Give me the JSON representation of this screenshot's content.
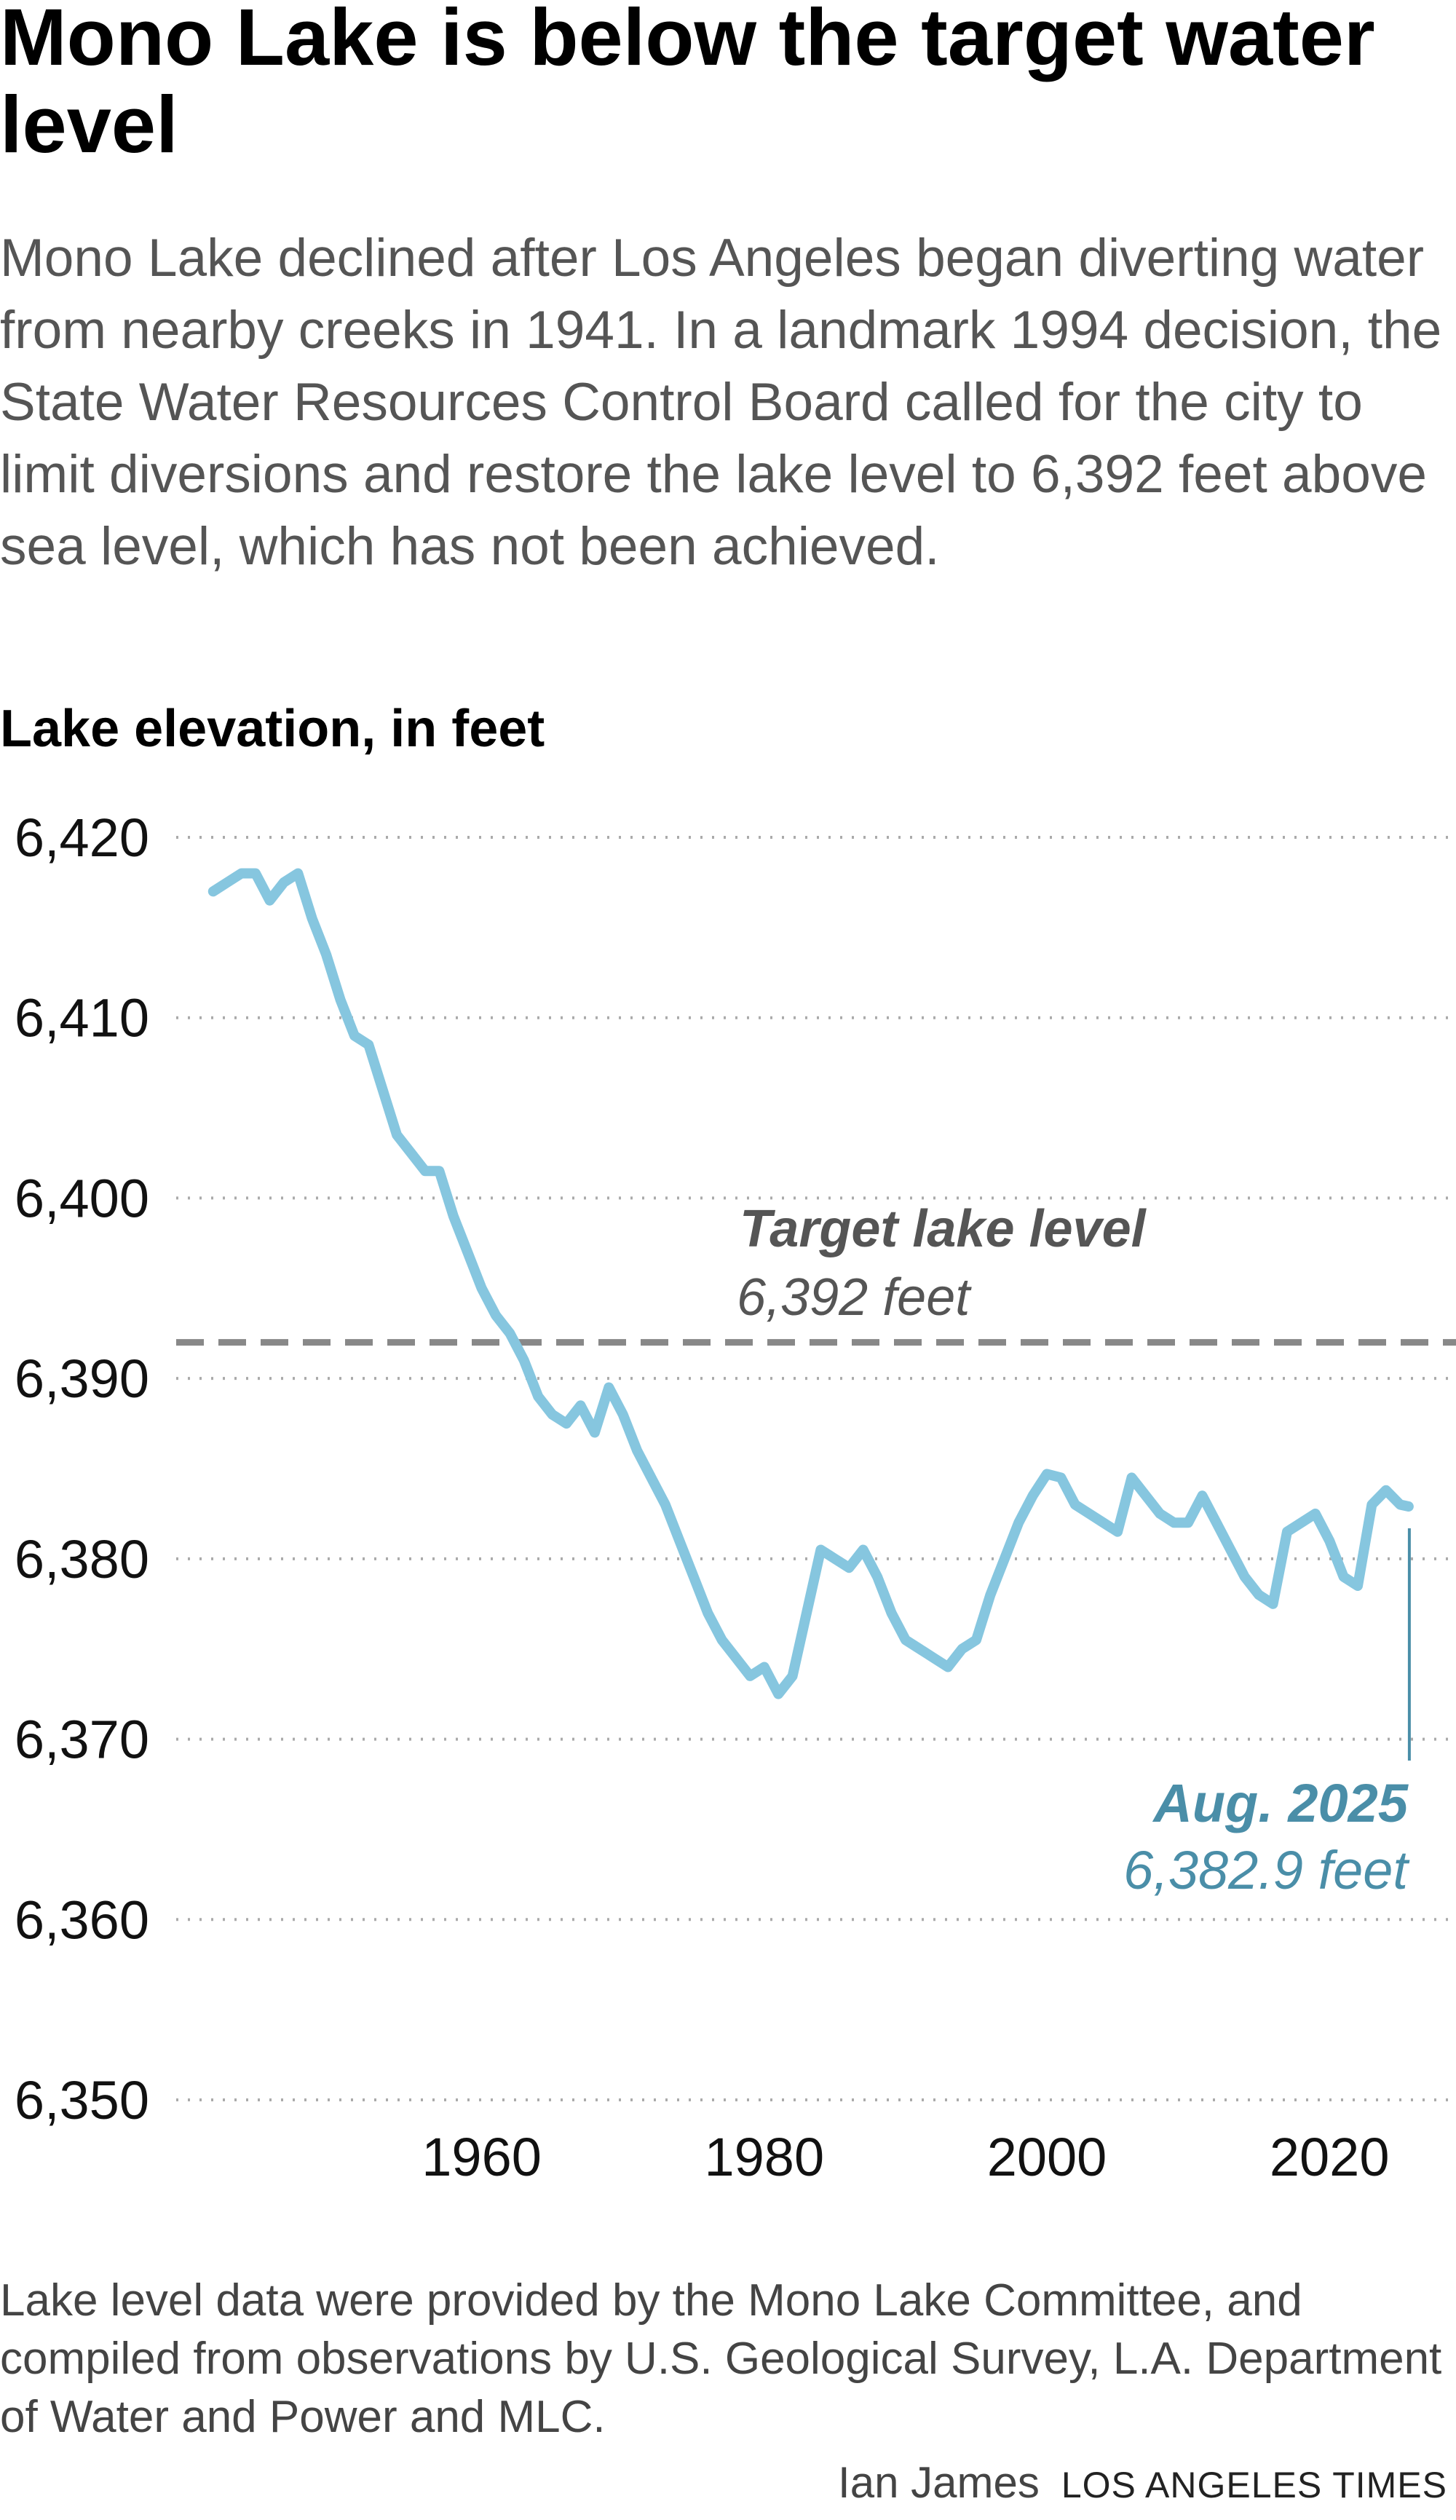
{
  "header": {
    "title": "Mono Lake is below the target water level",
    "subtitle": "Mono Lake declined after Los Angeles began diverting water from nearby creeks in 1941. In a landmark 1994 decision, the State Water Resources Control Board called for the city to limit diversions and restore the lake level to 6,392 feet above sea level, which has not been achieved."
  },
  "chart_data": {
    "type": "line",
    "ylabel": "Lake elevation, in feet",
    "ylim": [
      6350,
      6420
    ],
    "xlim": [
      1941,
      2025.6
    ],
    "y_ticks": [
      "6,420",
      "6,410",
      "6,400",
      "6,390",
      "6,380",
      "6,370",
      "6,360",
      "6,350"
    ],
    "y_tick_values": [
      6420,
      6410,
      6400,
      6390,
      6380,
      6370,
      6360,
      6350
    ],
    "x_ticks": [
      "1960",
      "1980",
      "2000",
      "2020"
    ],
    "x_tick_values": [
      1960,
      1980,
      2000,
      2020
    ],
    "grid": "horizontal dotted",
    "line_color": "#86c6df",
    "x": [
      1941,
      1942,
      1943,
      1944,
      1945,
      1946,
      1947,
      1948,
      1949,
      1950,
      1951,
      1952,
      1953,
      1954,
      1955,
      1956,
      1957,
      1958,
      1959,
      1960,
      1961,
      1962,
      1963,
      1964,
      1965,
      1966,
      1967,
      1968,
      1969,
      1970,
      1971,
      1972,
      1973,
      1974,
      1975,
      1976,
      1977,
      1978,
      1979,
      1980,
      1981,
      1982,
      1983,
      1984,
      1985,
      1986,
      1987,
      1988,
      1989,
      1990,
      1991,
      1992,
      1993,
      1994,
      1995,
      1996,
      1997,
      1998,
      1999,
      2000,
      2001,
      2002,
      2003,
      2004,
      2005,
      2006,
      2007,
      2008,
      2009,
      2010,
      2011,
      2012,
      2013,
      2014,
      2015,
      2016,
      2017,
      2018,
      2019,
      2020,
      2021,
      2022,
      2023,
      2024,
      2025,
      2025.6
    ],
    "values": [
      6417,
      6417.5,
      6418,
      6418,
      6416.5,
      6417.5,
      6418,
      6415.5,
      6413.5,
      6411,
      6409,
      6408.5,
      6406,
      6403.5,
      6402.5,
      6401.5,
      6401.5,
      6399,
      6397,
      6395,
      6393.5,
      6392.5,
      6391,
      6389,
      6388,
      6387.5,
      6388.5,
      6387,
      6389.5,
      6388,
      6386,
      6384.5,
      6383,
      6381,
      6379,
      6377,
      6375.5,
      6374.5,
      6373.5,
      6374,
      6372.5,
      6373.5,
      6377,
      6380.5,
      6380,
      6379.5,
      6380.5,
      6379,
      6377,
      6375.5,
      6375,
      6374.5,
      6374,
      6375,
      6375.5,
      6378,
      6380,
      6382,
      6383.5,
      6384.7,
      6384.5,
      6383,
      6382.5,
      6382,
      6381.5,
      6384.5,
      6383.5,
      6382.5,
      6382,
      6382,
      6383.5,
      6382,
      6380.5,
      6379,
      6378,
      6377.5,
      6381.5,
      6382,
      6382.5,
      6381,
      6379,
      6378.5,
      6383,
      6383.8,
      6383,
      6382.9
    ],
    "reference_line": {
      "value": 6392,
      "label": "Target lake level",
      "sublabel": "6,392 feet",
      "color": "#888888"
    },
    "end_annotation": {
      "label": "Aug. 2025",
      "sublabel": "6,382.9 feet",
      "color": "#4a8ea8"
    }
  },
  "footer": {
    "note": "Lake level data were provided by the Mono Lake Committee, and compiled from observations by U.S. Geological Survey, L.A. Department of Water and Power and MLC.",
    "author": "Ian James",
    "organization": "LOS ANGELES TIMES"
  }
}
